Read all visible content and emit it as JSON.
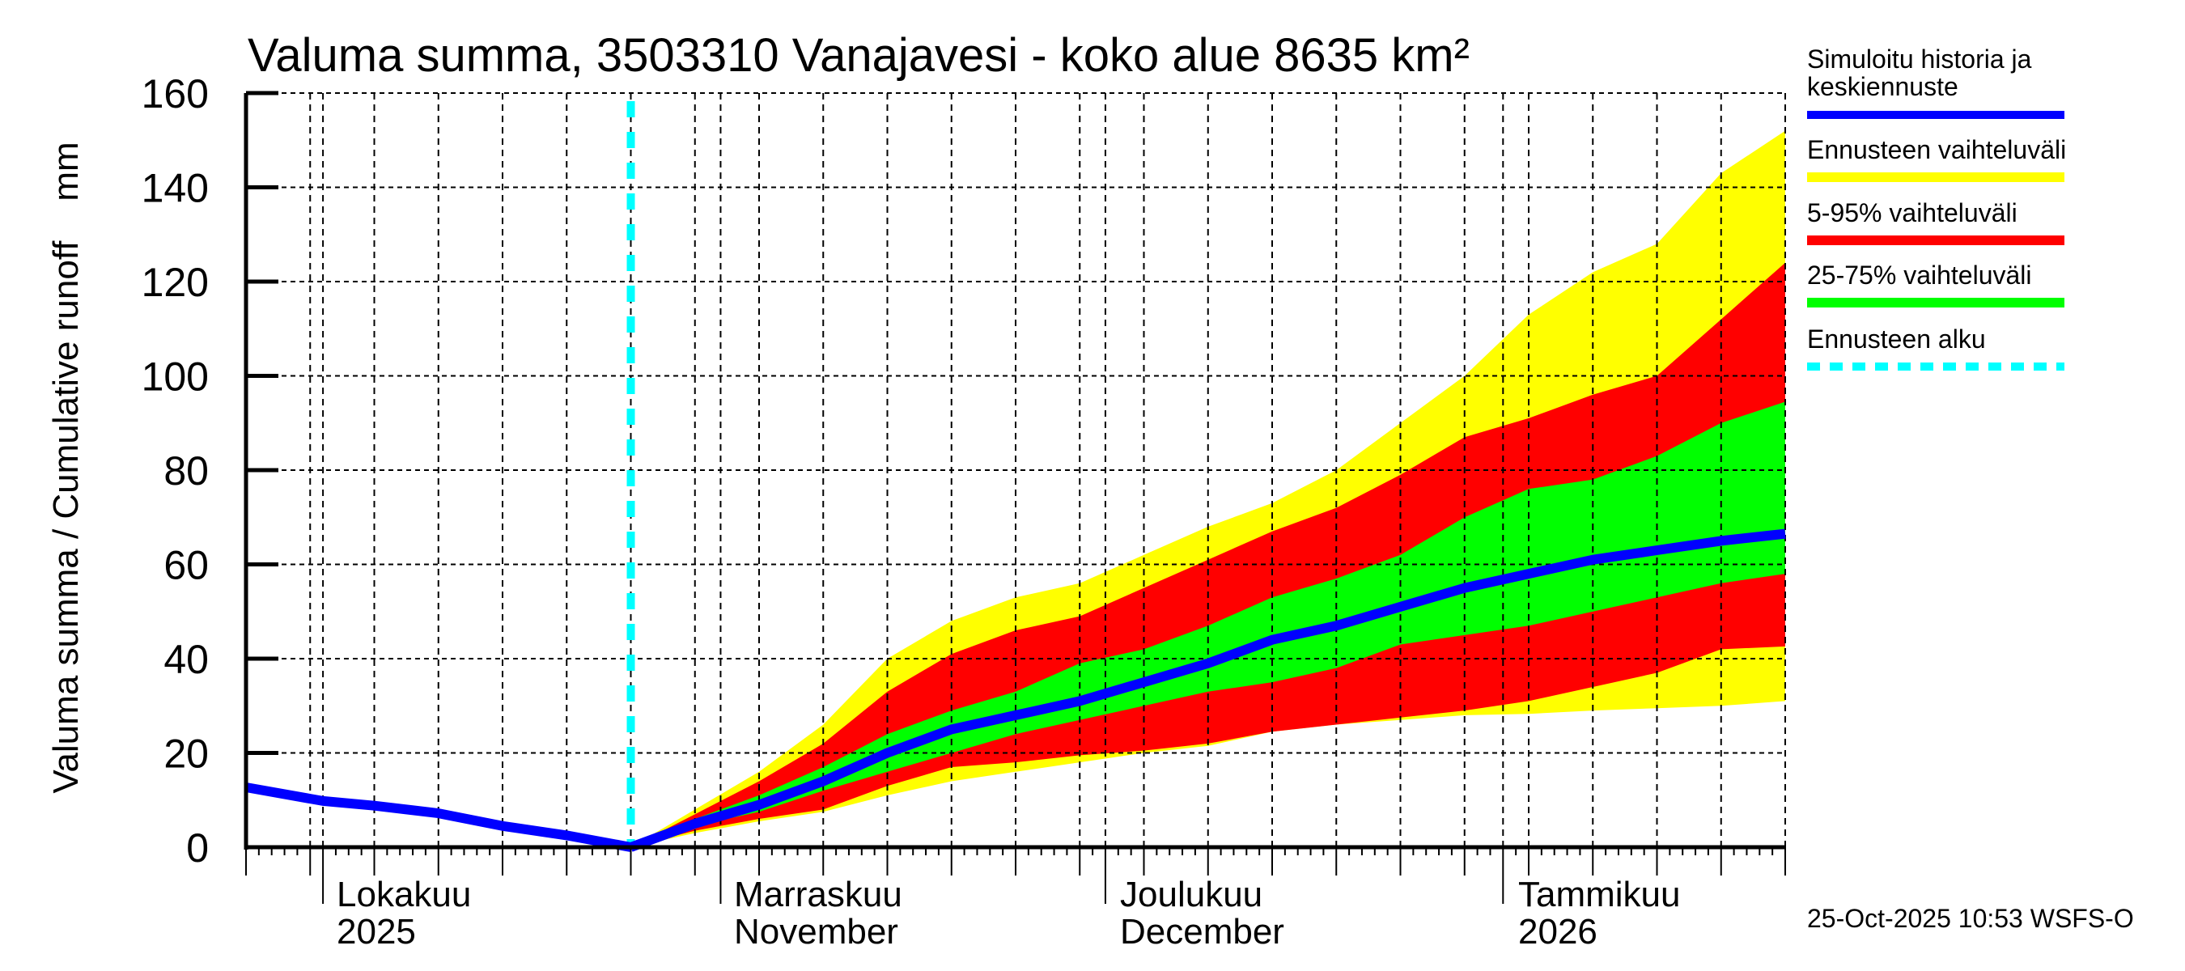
{
  "chart_data": {
    "type": "area",
    "title": "Valuma summa, 3503310 Vanajavesi - koko alue 8635 km²",
    "ylabel": "Valuma summa / Cumulative runoff    mm",
    "xlabel": "",
    "ylim": [
      0,
      160
    ],
    "yticks": [
      0,
      20,
      40,
      60,
      80,
      100,
      120,
      140,
      160
    ],
    "x_start_date": "2025-09-25",
    "x_end_date": "2026-01-23",
    "forecast_start_date": "2025-10-25",
    "grid": true,
    "legend_position": "right",
    "month_labels": [
      {
        "date": "2025-10-01",
        "line1": "Lokakuu",
        "line2": "2025"
      },
      {
        "date": "2025-11-01",
        "line1": "Marraskuu",
        "line2": "November"
      },
      {
        "date": "2025-12-01",
        "line1": "Joulukuu",
        "line2": "December"
      },
      {
        "date": "2026-01-01",
        "line1": "Tammikuu",
        "line2": "2026"
      }
    ],
    "history": {
      "name": "Simuloitu historia ja keskiennuste",
      "days": [
        0,
        6,
        10,
        15,
        20,
        25,
        30
      ],
      "values": [
        12.7,
        9.8,
        8.8,
        7.2,
        4.5,
        2.5,
        0
      ]
    },
    "forecast_days": [
      30,
      35,
      40,
      45,
      50,
      55,
      60,
      65,
      70,
      75,
      80,
      85,
      90,
      95,
      100,
      105,
      110,
      115,
      120
    ],
    "series": [
      {
        "name": "Ennusteen vaihteluväli max",
        "values": [
          0,
          8,
          16,
          26,
          40,
          48,
          53,
          56,
          62,
          68,
          73,
          80,
          90,
          100,
          113,
          122,
          128,
          143,
          152
        ]
      },
      {
        "name": "5-95% vaihteluväli upper",
        "values": [
          0,
          7,
          14,
          22,
          33,
          41,
          46,
          49,
          55,
          61,
          67,
          72,
          79,
          87,
          91,
          96,
          100,
          112,
          124
        ]
      },
      {
        "name": "25-75% vaihteluväli upper",
        "values": [
          0,
          6,
          11,
          17,
          24,
          29,
          33,
          39,
          42,
          47,
          53,
          57,
          62,
          70,
          76,
          78,
          83,
          90,
          94.5
        ]
      },
      {
        "name": "Simuloitu historia ja keskiennuste",
        "values": [
          0,
          5,
          9,
          14,
          20,
          25,
          28,
          31,
          35,
          39,
          44,
          47,
          51,
          55,
          58,
          61,
          63,
          65,
          66.5
        ]
      },
      {
        "name": "25-75% vaihteluväli lower",
        "values": [
          0,
          4.5,
          7.5,
          12,
          16,
          20,
          24,
          27,
          30,
          33,
          35,
          38,
          43,
          45,
          47,
          50,
          53,
          56,
          58
        ]
      },
      {
        "name": "5-95% vaihteluväli lower",
        "values": [
          0,
          3.5,
          6,
          8,
          13,
          17,
          18,
          19.5,
          20.5,
          22,
          24.5,
          26,
          27.5,
          29,
          31,
          34,
          37,
          42,
          42.6
        ]
      },
      {
        "name": "Ennusteen vaihteluväli min",
        "values": [
          0,
          3,
          5.5,
          7.5,
          11,
          14,
          16,
          18,
          20,
          21.5,
          24.5,
          26,
          27,
          28,
          28.3,
          29,
          29.5,
          30,
          31
        ]
      }
    ]
  },
  "colors": {
    "median": "#0000ff",
    "range_full": "#ffff00",
    "range_5_95": "#ff0000",
    "range_25_75": "#00ff00",
    "forecast_start": "#00ffff",
    "axis": "#000000"
  },
  "legend": [
    {
      "label_line1": "Simuloitu historia ja",
      "label_line2": "keskiennuste",
      "color": "#0000ff",
      "style": "solid"
    },
    {
      "label_line1": "Ennusteen vaihteluväli",
      "label_line2": "",
      "color": "#ffff00",
      "style": "solid"
    },
    {
      "label_line1": "5-95% vaihteluväli",
      "label_line2": "",
      "color": "#ff0000",
      "style": "solid"
    },
    {
      "label_line1": "25-75% vaihteluväli",
      "label_line2": "",
      "color": "#00ff00",
      "style": "solid"
    },
    {
      "label_line1": "Ennusteen alku",
      "label_line2": "",
      "color": "#00ffff",
      "style": "dashed"
    }
  ],
  "footer": "25-Oct-2025 10:53 WSFS-O"
}
